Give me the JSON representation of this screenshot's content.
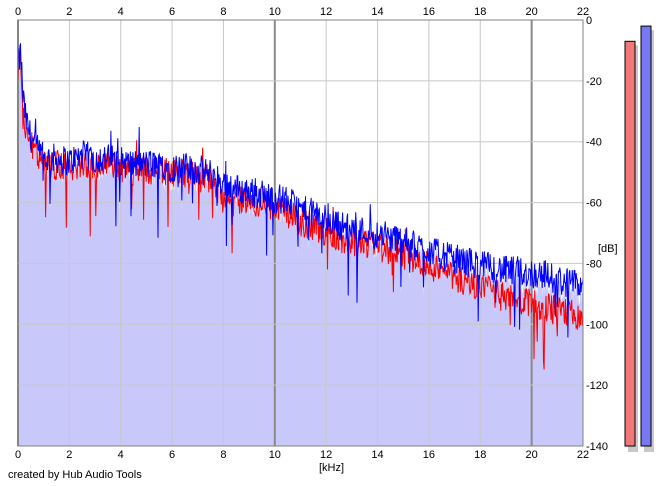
{
  "chart_data": {
    "type": "line",
    "xlabel": "[kHz]",
    "ylabel": "[dB]",
    "xlim": [
      0,
      22
    ],
    "ylim": [
      -140,
      0
    ],
    "x_ticks": [
      "0",
      "2",
      "4",
      "6",
      "8",
      "10",
      "12",
      "14",
      "16",
      "18",
      "20",
      "22"
    ],
    "y_ticks": [
      "0",
      "-20",
      "-40",
      "-60",
      "-80",
      "-100",
      "-120",
      "-140"
    ],
    "grid": true,
    "filled_area_color": "#c8c8fa",
    "series": [
      {
        "color": "#0000ff",
        "x": [
          0,
          0.1,
          0.2,
          0.3,
          0.5,
          0.8,
          1.0,
          1.5,
          2.0,
          2.5,
          3.0,
          3.5,
          4.0,
          4.5,
          5.0,
          5.5,
          6.0,
          6.5,
          7.0,
          7.5,
          8.0,
          8.5,
          9.0,
          9.5,
          10.0,
          10.5,
          11.0,
          11.5,
          12.0,
          12.5,
          13.0,
          13.5,
          14.0,
          14.5,
          15.0,
          15.5,
          16.0,
          16.5,
          17.0,
          17.5,
          18.0,
          18.5,
          19.0,
          19.5,
          20.0,
          20.5,
          21.0,
          21.5,
          22.0
        ],
        "values": [
          -15,
          -10,
          -25,
          -32,
          -38,
          -43,
          -45,
          -45,
          -46,
          -44,
          -45,
          -45,
          -46,
          -47,
          -47,
          -47,
          -48,
          -48,
          -49,
          -50,
          -53,
          -55,
          -56,
          -57,
          -58,
          -59,
          -62,
          -63,
          -65,
          -67,
          -68,
          -69,
          -70,
          -71,
          -72,
          -74,
          -75,
          -77,
          -78,
          -79,
          -80,
          -81,
          -82,
          -82,
          -83,
          -83,
          -85,
          -86,
          -87
        ]
      },
      {
        "color": "#ff0000",
        "x": [
          0,
          0.1,
          0.2,
          0.3,
          0.5,
          0.8,
          1.0,
          1.5,
          2.0,
          2.5,
          3.0,
          3.5,
          4.0,
          4.5,
          5.0,
          5.5,
          6.0,
          6.5,
          7.0,
          7.5,
          8.0,
          8.5,
          9.0,
          9.5,
          10.0,
          10.5,
          11.0,
          11.5,
          12.0,
          12.5,
          13.0,
          13.5,
          14.0,
          14.5,
          15.0,
          15.5,
          16.0,
          16.5,
          17.0,
          17.5,
          18.0,
          18.5,
          19.0,
          19.5,
          20.0,
          20.5,
          21.0,
          21.5,
          22.0
        ],
        "values": [
          -18,
          -14,
          -28,
          -35,
          -40,
          -44,
          -47,
          -47,
          -48,
          -46,
          -47,
          -47,
          -48,
          -49,
          -49,
          -49,
          -50,
          -50,
          -51,
          -52,
          -56,
          -58,
          -59,
          -60,
          -61,
          -63,
          -66,
          -67,
          -69,
          -71,
          -72,
          -73,
          -74,
          -75,
          -76,
          -78,
          -80,
          -82,
          -84,
          -86,
          -88,
          -89,
          -91,
          -92,
          -93,
          -94,
          -95,
          -96,
          -97
        ]
      }
    ]
  },
  "meters": [
    {
      "color": "#f07878",
      "level_db": -7
    },
    {
      "color": "#7878f0",
      "level_db": -2
    }
  ],
  "footer": {
    "credit": "created by Hub Audio Tools"
  }
}
